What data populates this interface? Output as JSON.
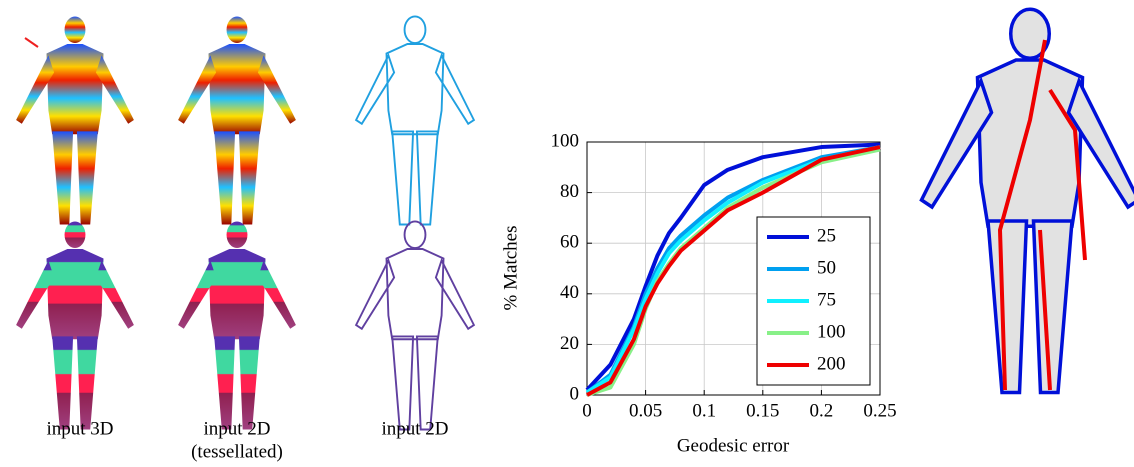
{
  "panels": {
    "captions": [
      "input 3D",
      "input 2D",
      "(tessellated)",
      "input 2D"
    ]
  },
  "chart_data": {
    "type": "line",
    "xlabel": "Geodesic error",
    "ylabel": "% Matches",
    "x": [
      0,
      0.02,
      0.04,
      0.05,
      0.06,
      0.07,
      0.08,
      0.1,
      0.12,
      0.15,
      0.2,
      0.25
    ],
    "series": [
      {
        "name": "25",
        "color": "#0010d8",
        "values": [
          2,
          12,
          30,
          43,
          55,
          64,
          70,
          83,
          89,
          94,
          98,
          99
        ]
      },
      {
        "name": "50",
        "color": "#00a0f0",
        "values": [
          1,
          8,
          27,
          40,
          50,
          58,
          63,
          71,
          78,
          85,
          94,
          98
        ]
      },
      {
        "name": "75",
        "color": "#10f0ff",
        "values": [
          1,
          7,
          26,
          38,
          48,
          56,
          61,
          69,
          76,
          84,
          93,
          98
        ]
      },
      {
        "name": "100",
        "color": "#88f088",
        "values": [
          0,
          3,
          20,
          34,
          45,
          52,
          58,
          66,
          74,
          82,
          92,
          97
        ]
      },
      {
        "name": "200",
        "color": "#ee0000",
        "values": [
          0,
          5,
          22,
          35,
          44,
          51,
          57,
          65,
          73,
          80,
          93,
          98
        ]
      }
    ],
    "xlim": [
      0,
      0.25
    ],
    "ylim": [
      0,
      100
    ],
    "xticks": [
      0,
      0.05,
      0.1,
      0.15,
      0.2,
      0.25
    ],
    "yticks": [
      0,
      20,
      40,
      60,
      80,
      100
    ],
    "grid": true,
    "legend": "lower right"
  }
}
